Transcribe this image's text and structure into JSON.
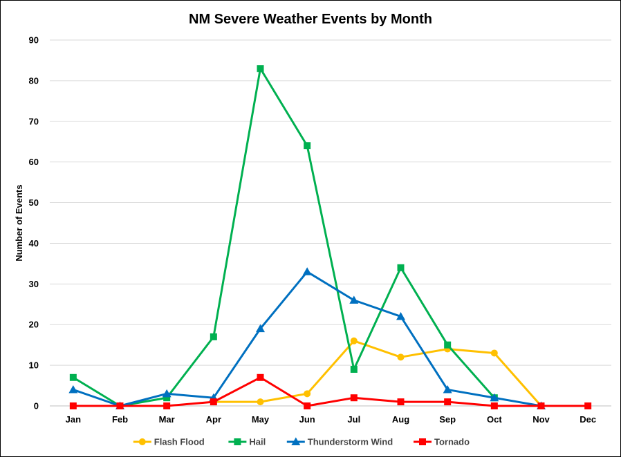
{
  "chart_data": {
    "type": "line",
    "title": "NM Severe Weather Events by Month",
    "xlabel": "",
    "ylabel": "Number of  Events",
    "ylim": [
      0,
      90
    ],
    "yticks": [
      0,
      10,
      20,
      30,
      40,
      50,
      60,
      70,
      80,
      90
    ],
    "grid": true,
    "legend_position": "bottom",
    "categories": [
      "Jan",
      "Feb",
      "Mar",
      "Apr",
      "May",
      "Jun",
      "Jul",
      "Aug",
      "Sep",
      "Oct",
      "Nov",
      "Dec"
    ],
    "series": [
      {
        "name": "Flash Flood",
        "color": "#ffc000",
        "marker": "circle",
        "values": [
          null,
          null,
          null,
          1,
          1,
          3,
          16,
          12,
          14,
          13,
          0,
          null
        ]
      },
      {
        "name": "Hail",
        "color": "#00b050",
        "marker": "square",
        "values": [
          7,
          0,
          2,
          17,
          83,
          64,
          9,
          34,
          15,
          2,
          null,
          null
        ]
      },
      {
        "name": "Thunderstorm Wind",
        "color": "#0070c0",
        "marker": "triangle",
        "values": [
          4,
          0,
          3,
          2,
          19,
          33,
          26,
          22,
          4,
          2,
          0,
          null
        ]
      },
      {
        "name": "Tornado",
        "color": "#ff0000",
        "marker": "square",
        "values": [
          0,
          0,
          0,
          1,
          7,
          0,
          2,
          1,
          1,
          0,
          0,
          0
        ]
      }
    ]
  }
}
